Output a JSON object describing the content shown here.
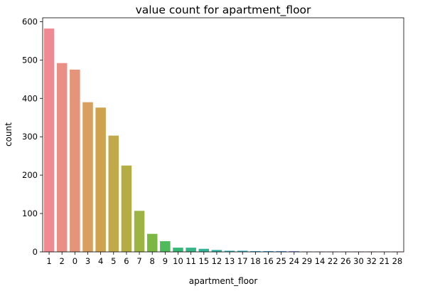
{
  "chart_data": {
    "type": "bar",
    "title": "value count for apartment_floor",
    "xlabel": "apartment_floor",
    "ylabel": "count",
    "categories": [
      "1",
      "2",
      "0",
      "3",
      "4",
      "5",
      "6",
      "7",
      "8",
      "9",
      "10",
      "11",
      "15",
      "12",
      "13",
      "17",
      "18",
      "16",
      "25",
      "24",
      "29",
      "14",
      "22",
      "26",
      "30",
      "32",
      "21",
      "28"
    ],
    "values": [
      582,
      492,
      475,
      390,
      376,
      303,
      225,
      107,
      47,
      28,
      11,
      11,
      8,
      5,
      3,
      3,
      2,
      2,
      2,
      2,
      1,
      1,
      1,
      1,
      1,
      1,
      1,
      1
    ],
    "ylim": [
      0,
      610
    ],
    "yticks": [
      0,
      100,
      200,
      300,
      400,
      500,
      600
    ],
    "grid": false,
    "colors": [
      "#f08a92",
      "#ea8f83",
      "#e69479",
      "#d99f5f",
      "#cfa34e",
      "#c1a949",
      "#b4ad43",
      "#9db444",
      "#7bb843",
      "#4fba5a",
      "#35b875",
      "#37b587",
      "#36b396",
      "#36b1a3",
      "#37aeb0",
      "#38acbd",
      "#3aa8cb",
      "#3ca3dc",
      "#5a9ce6",
      "#8896ea",
      "#a38eec",
      "#ba86ec",
      "#cf7ae9",
      "#df6fe0",
      "#e86bce",
      "#ec6dbb",
      "#ef72aa",
      "#f37b9e"
    ]
  }
}
